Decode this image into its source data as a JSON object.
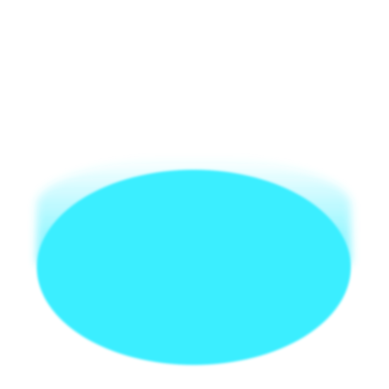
{
  "shape": {
    "type": "cylinder-disc",
    "icon": "cyan-disc-icon",
    "fill_color": "#3aeeff",
    "glow_color": "#3aeeff",
    "background_color": "#ffffff"
  }
}
